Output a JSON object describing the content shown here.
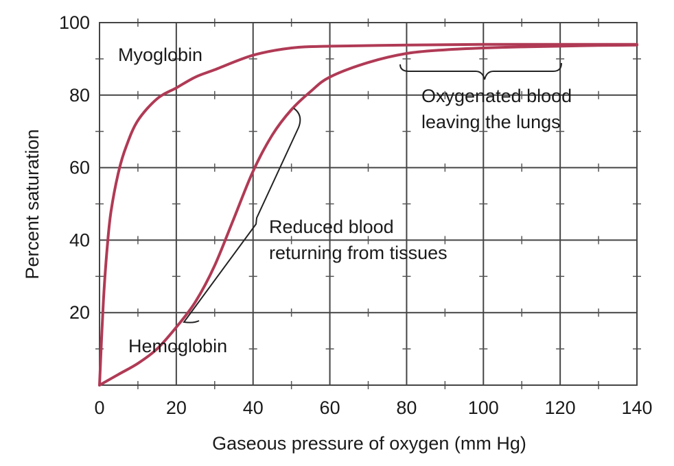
{
  "chart_data": {
    "type": "line",
    "xlabel": "Gaseous pressure of oxygen (mm Hg)",
    "ylabel": "Percent saturation",
    "xlim": [
      0,
      140
    ],
    "ylim": [
      0,
      100
    ],
    "x_ticks": [
      "0",
      "20",
      "40",
      "60",
      "80",
      "100",
      "120",
      "140"
    ],
    "y_ticks": [
      "20",
      "40",
      "60",
      "80",
      "100"
    ],
    "grid": true,
    "line_color": "#b03a55",
    "series": [
      {
        "name": "Myoglobin",
        "x": [
          0,
          1,
          2,
          3,
          5,
          7,
          10,
          15,
          20,
          25,
          30,
          40,
          50,
          60,
          80,
          100,
          120,
          140
        ],
        "y": [
          0,
          23,
          38,
          48,
          59,
          66,
          73,
          79,
          82,
          85,
          87,
          91,
          93,
          93.5,
          93.8,
          94,
          94,
          94
        ]
      },
      {
        "name": "Hemoglobin",
        "x": [
          0,
          5,
          10,
          15,
          20,
          25,
          30,
          35,
          40,
          45,
          50,
          55,
          60,
          70,
          80,
          90,
          100,
          110,
          120,
          130,
          140
        ],
        "y": [
          0,
          3,
          6,
          10,
          16,
          23,
          33,
          46,
          59,
          69,
          76,
          81,
          85,
          89,
          91.5,
          92.5,
          93,
          93.3,
          93.5,
          93.7,
          93.8
        ]
      }
    ],
    "annotations": {
      "oxygenated": [
        "Oxygenated blood",
        "leaving the lungs"
      ],
      "reduced": [
        "Reduced blood",
        "returning from tissues"
      ]
    }
  }
}
